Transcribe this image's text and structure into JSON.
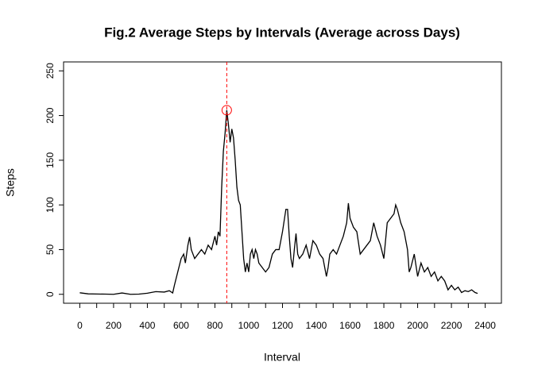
{
  "chart_data": {
    "type": "line",
    "title": "Fig.2 Average Steps by Intervals (Average across Days)",
    "xlabel": "Interval",
    "ylabel": "Steps",
    "x": [
      0,
      50,
      100,
      150,
      200,
      250,
      300,
      350,
      400,
      450,
      500,
      530,
      550,
      560,
      580,
      600,
      615,
      625,
      640,
      650,
      660,
      680,
      700,
      720,
      740,
      760,
      780,
      800,
      810,
      820,
      830,
      840,
      850,
      860,
      870,
      880,
      890,
      900,
      910,
      920,
      930,
      940,
      950,
      960,
      970,
      980,
      990,
      1000,
      1010,
      1020,
      1030,
      1040,
      1050,
      1060,
      1080,
      1100,
      1120,
      1140,
      1160,
      1180,
      1200,
      1220,
      1230,
      1240,
      1250,
      1260,
      1270,
      1280,
      1290,
      1300,
      1320,
      1340,
      1360,
      1380,
      1400,
      1420,
      1440,
      1460,
      1470,
      1480,
      1500,
      1520,
      1540,
      1560,
      1580,
      1590,
      1600,
      1620,
      1640,
      1660,
      1680,
      1700,
      1720,
      1740,
      1760,
      1780,
      1800,
      1820,
      1840,
      1860,
      1870,
      1880,
      1900,
      1920,
      1940,
      1950,
      1960,
      1980,
      2000,
      2020,
      2040,
      2060,
      2080,
      2100,
      2120,
      2140,
      2160,
      2180,
      2200,
      2220,
      2240,
      2260,
      2280,
      2300,
      2320,
      2340,
      2355
    ],
    "series": [
      {
        "name": "Steps",
        "color": "#000000",
        "values": [
          1.7,
          0.5,
          0.3,
          0.2,
          0,
          1.5,
          0,
          0.2,
          1.2,
          3,
          2.5,
          4,
          1.5,
          10,
          25,
          40,
          45,
          35,
          55,
          64,
          50,
          40,
          45,
          50,
          45,
          55,
          50,
          65,
          55,
          70,
          65,
          120,
          160,
          180,
          206,
          190,
          170,
          185,
          175,
          150,
          120,
          105,
          100,
          70,
          40,
          25,
          35,
          25,
          45,
          50,
          40,
          50,
          45,
          35,
          30,
          25,
          30,
          45,
          50,
          50,
          70,
          95,
          95,
          65,
          40,
          30,
          50,
          68,
          45,
          40,
          45,
          55,
          40,
          60,
          55,
          45,
          40,
          20,
          30,
          45,
          50,
          45,
          55,
          65,
          80,
          102,
          85,
          75,
          70,
          45,
          50,
          55,
          60,
          80,
          65,
          55,
          40,
          80,
          85,
          90,
          100,
          95,
          80,
          70,
          50,
          25,
          30,
          45,
          20,
          35,
          25,
          30,
          20,
          25,
          15,
          20,
          15,
          5,
          10,
          5,
          8,
          2,
          4,
          3,
          5,
          2,
          1
        ]
      }
    ],
    "max_point": {
      "x": 870,
      "y": 206,
      "color": "#ff0000"
    },
    "xlim": [
      -96,
      2496
    ],
    "ylim": [
      -10,
      260
    ],
    "xticks": [
      0,
      200,
      400,
      600,
      800,
      1000,
      1200,
      1400,
      1600,
      1800,
      2000,
      2200,
      2400
    ],
    "xminorticks": [
      100,
      300,
      500,
      700,
      900,
      1100,
      1300,
      1500,
      1700,
      1900,
      2100,
      2300
    ],
    "yticks": [
      0,
      50,
      100,
      150,
      200,
      250
    ]
  }
}
